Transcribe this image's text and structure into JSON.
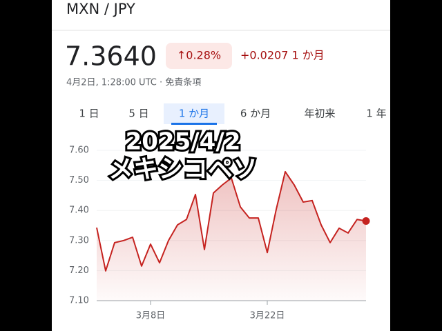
{
  "quote": {
    "pair": "MXN / JPY",
    "price": "7.3640",
    "change_pct": "↑0.28%",
    "change_abs": "+0.0207 1 か月",
    "timestamp": "4月2日, 1:28:00 UTC · 免責条項",
    "tabs": [
      "1 日",
      "5 日",
      "1 か月",
      "6 か月",
      "年初来",
      "1 年"
    ],
    "selected_tab": 2
  },
  "overlay": {
    "date": "2025/4/2",
    "caption": "メキシコペソ"
  },
  "chart_data": {
    "type": "line",
    "color": "#c5221f",
    "categories": [
      null,
      null,
      null,
      null,
      null,
      null,
      "3月8日",
      null,
      null,
      null,
      null,
      null,
      null,
      null,
      null,
      null,
      null,
      null,
      null,
      "3月22日",
      null,
      null,
      null,
      null,
      null,
      null,
      null,
      null,
      null,
      null,
      null
    ],
    "values": [
      7.343,
      7.199,
      7.293,
      7.3,
      7.311,
      7.215,
      7.288,
      7.226,
      7.3,
      7.352,
      7.37,
      7.453,
      7.27,
      7.458,
      7.485,
      7.508,
      7.412,
      7.375,
      7.375,
      7.26,
      7.404,
      7.529,
      7.485,
      7.428,
      7.433,
      7.352,
      7.293,
      7.341,
      7.325,
      7.37,
      7.365
    ],
    "ylim": [
      7.1,
      7.6
    ],
    "yticks": [
      {
        "value": 7.1,
        "label": "7.10"
      },
      {
        "value": 7.2,
        "label": "7.20"
      },
      {
        "value": 7.3,
        "label": "7.30"
      },
      {
        "value": 7.4,
        "label": "7.40"
      },
      {
        "value": 7.5,
        "label": "7.50"
      },
      {
        "value": 7.6,
        "label": "7.60"
      }
    ],
    "grid": true
  }
}
